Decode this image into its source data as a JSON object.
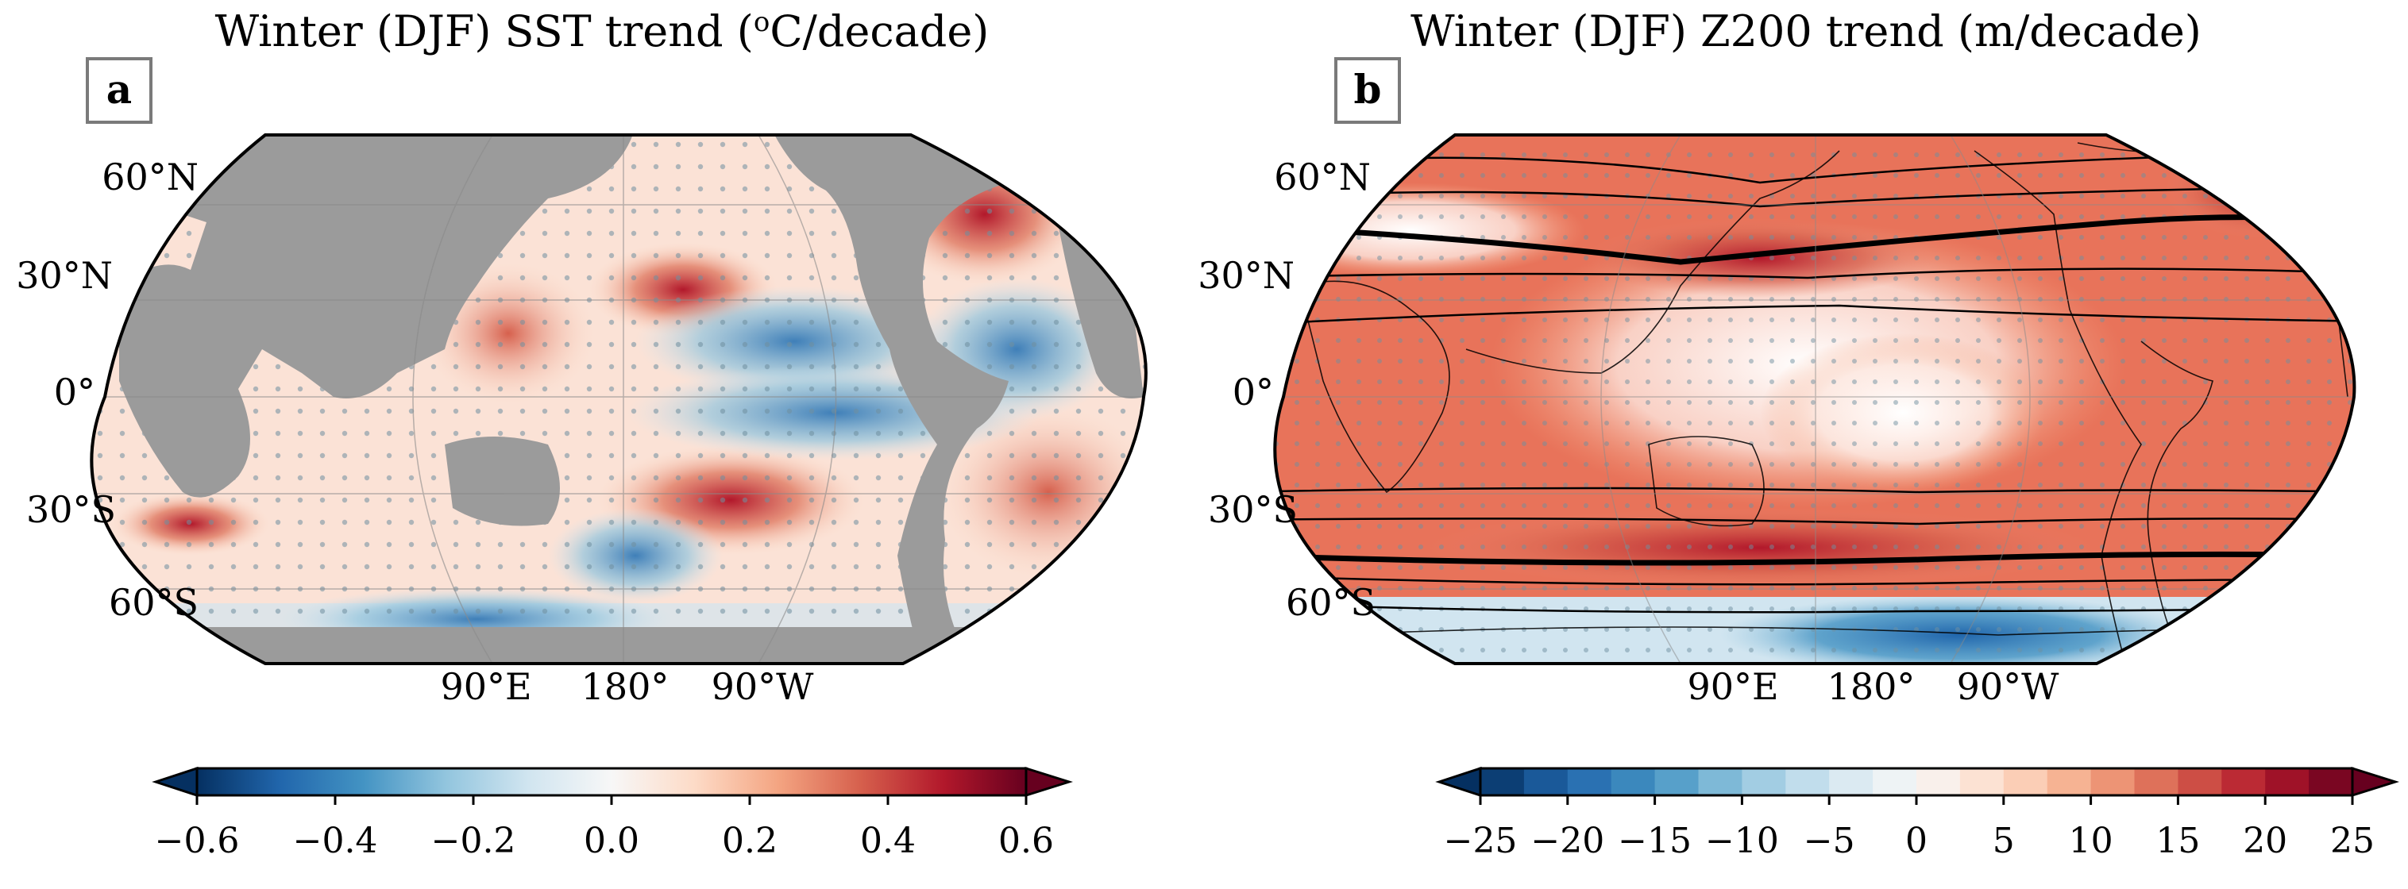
{
  "panels": [
    {
      "id": "a",
      "letter": "a",
      "title_pre": "Winter (DJF) SST trend (",
      "title_sup": "o",
      "title_post": "C/decade)",
      "lat_labels": [
        "60°N",
        "30°N",
        "0°",
        "30°S",
        "60°S"
      ],
      "lon_labels": [
        "90°E",
        "180°",
        "90°W"
      ],
      "colorbar_ticks": [
        "−0.6",
        "−0.4",
        "−0.2",
        "0.0",
        "0.2",
        "0.4",
        "0.6"
      ],
      "colorbar_range": [
        -0.6,
        0.6
      ],
      "stippling": "significant trends",
      "land_color": "#9b9b9b"
    },
    {
      "id": "b",
      "letter": "b",
      "title_pre": "Winter (DJF) Z200 trend (m/decade)",
      "title_sup": "",
      "title_post": "",
      "lat_labels": [
        "60°N",
        "30°N",
        "0°",
        "30°S",
        "60°S"
      ],
      "lon_labels": [
        "90°E",
        "180°",
        "90°W"
      ],
      "colorbar_ticks": [
        "−25",
        "−20",
        "−15",
        "−10",
        "−5",
        "0",
        "5",
        "10",
        "15",
        "20",
        "25"
      ],
      "colorbar_range": [
        -25,
        25
      ],
      "stippling": "significant trends",
      "contours": "climatological Z200"
    }
  ],
  "colormap": {
    "name": "RdBu_r",
    "stops": [
      "#053061",
      "#2166ac",
      "#4393c3",
      "#92c5de",
      "#d1e5f0",
      "#f7f7f7",
      "#fddbc7",
      "#f4a582",
      "#d6604d",
      "#b2182b",
      "#67001f"
    ]
  }
}
